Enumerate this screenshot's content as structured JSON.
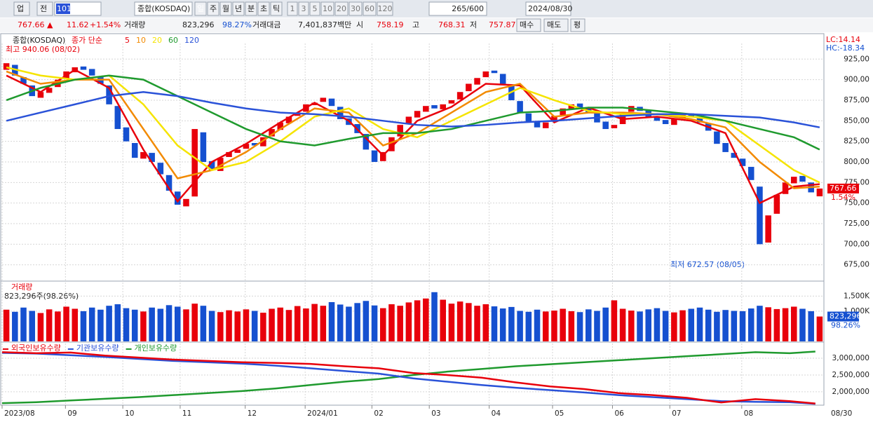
{
  "toolbar": {
    "market": "업",
    "mode": "전",
    "code": "101",
    "name": "종합(KOSDAQ)",
    "periods": [
      "일",
      "주",
      "월",
      "년",
      "분",
      "초",
      "틱"
    ],
    "minutes": [
      "1",
      "3",
      "5",
      "10",
      "20",
      "30",
      "60",
      "120"
    ],
    "count": "265/600",
    "date": "2024/08/30"
  },
  "info": {
    "price": "767.66 ▲",
    "change": "11.62",
    "change_pct": "+1.54%",
    "volume_label": "거래량",
    "volume": "823,296",
    "volume_pct": "98.27%",
    "amount_label": "거래대금",
    "amount": "7,401,837백만",
    "open_label": "시",
    "open": "758.19",
    "high_label": "고",
    "high": "768.31",
    "low_label": "저",
    "low": "757.87",
    "buy": "매수",
    "sell": "매도",
    "avg": "평",
    "x_end_label": "08/30"
  },
  "chart_data": [
    {
      "type": "candlestick",
      "title": "종합(KOSDAQ)",
      "ma_title": "종가 단순",
      "lc": "LC:14.14",
      "hc": "HC:-18.34",
      "max_note": "최고 940.06 (08/02)",
      "min_note": "최저 672.57 (08/05)",
      "last_label": "767.66",
      "last_pct": "1.54%",
      "up_color": "#e8000b",
      "down_color": "#1550d0",
      "xlim": [
        0,
        96
      ],
      "ylim": [
        656,
        944
      ],
      "yticks": [
        {
          "value": 675,
          "label": "675,00"
        },
        {
          "value": 700,
          "label": "700,00"
        },
        {
          "value": 725,
          "label": "725,00"
        },
        {
          "value": 750,
          "label": "750,00"
        },
        {
          "value": 775,
          "label": "775,00"
        },
        {
          "value": 800,
          "label": "800,00"
        },
        {
          "value": 825,
          "label": "825,00"
        },
        {
          "value": 850,
          "label": "850,00"
        },
        {
          "value": 875,
          "label": "875,00"
        },
        {
          "value": 900,
          "label": "900,00"
        },
        {
          "value": 925,
          "label": "925,00"
        }
      ],
      "open": [
        912,
        918,
        903,
        893,
        878,
        884,
        891,
        901,
        909,
        916,
        913,
        904,
        893,
        868,
        842,
        823,
        804,
        811,
        799,
        784,
        764,
        746,
        758,
        836,
        801,
        789,
        806,
        811,
        816,
        823,
        819,
        831,
        839,
        847,
        856,
        861,
        869,
        873,
        877,
        867,
        853,
        846,
        834,
        814,
        801,
        813,
        831,
        846,
        854,
        861,
        869,
        864,
        871,
        876,
        886,
        894,
        903,
        911,
        907,
        894,
        874,
        859,
        849,
        841,
        849,
        857,
        864,
        871,
        865,
        859,
        849,
        841,
        846,
        861,
        867,
        863,
        854,
        851,
        845,
        853,
        859,
        854,
        847,
        837,
        823,
        811,
        804,
        794,
        770,
        702,
        737,
        761,
        774,
        783,
        775,
        758.19
      ],
      "close": [
        920,
        905,
        895,
        880,
        885,
        890,
        900,
        910,
        915,
        912,
        905,
        895,
        870,
        840,
        825,
        805,
        812,
        800,
        785,
        765,
        748,
        755,
        840,
        800,
        790,
        805,
        812,
        815,
        822,
        820,
        830,
        840,
        848,
        855,
        860,
        870,
        872,
        878,
        868,
        852,
        845,
        835,
        815,
        800,
        812,
        830,
        845,
        855,
        862,
        868,
        865,
        870,
        875,
        885,
        895,
        902,
        910,
        908,
        895,
        875,
        860,
        848,
        842,
        848,
        856,
        865,
        870,
        866,
        860,
        848,
        840,
        845,
        860,
        868,
        862,
        855,
        850,
        846,
        852,
        858,
        855,
        848,
        838,
        822,
        812,
        805,
        795,
        778,
        700,
        735,
        760,
        775,
        782,
        776,
        763,
        767.66
      ],
      "ma_x": [
        0,
        4,
        8,
        12,
        16,
        20,
        24,
        28,
        32,
        36,
        40,
        44,
        48,
        52,
        56,
        60,
        64,
        68,
        72,
        76,
        80,
        84,
        88,
        92,
        95
      ],
      "series": [
        {
          "name": "5",
          "color": "#e8000b",
          "values": [
            905,
            885,
            912,
            890,
            815,
            752,
            800,
            822,
            848,
            872,
            850,
            808,
            850,
            867,
            895,
            893,
            848,
            866,
            852,
            855,
            850,
            835,
            750,
            770,
            773
          ]
        },
        {
          "name": "10",
          "color": "#f28a00",
          "values": [
            910,
            895,
            900,
            900,
            840,
            780,
            790,
            812,
            840,
            865,
            860,
            820,
            835,
            860,
            885,
            895,
            855,
            860,
            860,
            858,
            852,
            842,
            800,
            768,
            770
          ]
        },
        {
          "name": "20",
          "color": "#f5e400",
          "values": [
            915,
            905,
            900,
            905,
            870,
            820,
            790,
            800,
            825,
            855,
            865,
            840,
            830,
            850,
            870,
            890,
            875,
            862,
            858,
            858,
            855,
            850,
            820,
            790,
            775
          ]
        },
        {
          "name": "60",
          "color": "#1f9a2e",
          "values": [
            875,
            890,
            900,
            905,
            900,
            880,
            860,
            840,
            825,
            820,
            828,
            835,
            835,
            840,
            850,
            860,
            862,
            866,
            866,
            862,
            858,
            850,
            840,
            830,
            815
          ]
        },
        {
          "name": "120",
          "color": "#2a52d8",
          "values": [
            850,
            860,
            870,
            880,
            885,
            880,
            872,
            865,
            860,
            858,
            855,
            850,
            845,
            843,
            845,
            848,
            850,
            853,
            856,
            858,
            858,
            856,
            854,
            848,
            842
          ]
        }
      ]
    },
    {
      "type": "bar",
      "title": "거래량",
      "subtitle": "823,296주(98.26%)",
      "last_label": "823,296",
      "last_pct": "98.26%",
      "xlim": [
        0,
        96
      ],
      "ylim": [
        0,
        1950000
      ],
      "yticks": [
        {
          "value": 1000000,
          "label": "1,000K"
        },
        {
          "value": 1500000,
          "label": "1,500K"
        }
      ],
      "values": [
        1050000,
        980000,
        1120000,
        1010000,
        940000,
        1060000,
        990000,
        1150000,
        1080000,
        1000000,
        1120000,
        1050000,
        1180000,
        1230000,
        1100000,
        1050000,
        990000,
        1120000,
        1080000,
        1200000,
        1150000,
        1060000,
        1250000,
        1180000,
        1010000,
        970000,
        1030000,
        990000,
        1060000,
        1010000,
        950000,
        1080000,
        1120000,
        1040000,
        1170000,
        1090000,
        1240000,
        1180000,
        1300000,
        1220000,
        1150000,
        1270000,
        1340000,
        1190000,
        1100000,
        1230000,
        1180000,
        1290000,
        1360000,
        1420000,
        1630000,
        1380000,
        1250000,
        1320000,
        1270000,
        1180000,
        1230000,
        1160000,
        1090000,
        1140000,
        1010000,
        980000,
        1050000,
        990000,
        1020000,
        1080000,
        1000000,
        970000,
        1060000,
        1010000,
        1120000,
        1360000,
        1080000,
        1020000,
        990000,
        1060000,
        1100000,
        1010000,
        960000,
        1030000,
        1080000,
        1120000,
        1050000,
        980000,
        1040000,
        1010000,
        1000000,
        1090000,
        1180000,
        1130000,
        1070000,
        1100000,
        1150000,
        1080000,
        1000000,
        823296
      ],
      "colors": {
        "up": "#e8000b",
        "down": "#1550d0"
      }
    },
    {
      "type": "line",
      "xlim": [
        0,
        96
      ],
      "ylim": [
        1600000,
        3440000
      ],
      "yticks": [
        {
          "value": 2000000,
          "label": "2,000,000"
        },
        {
          "value": 2500000,
          "label": "2,500,000"
        },
        {
          "value": 3000000,
          "label": "3,000,000"
        }
      ],
      "x": [
        0,
        4,
        8,
        12,
        16,
        20,
        24,
        28,
        32,
        36,
        40,
        44,
        48,
        52,
        56,
        60,
        64,
        68,
        72,
        76,
        80,
        84,
        88,
        92,
        95
      ],
      "xticks": [
        {
          "value": 0,
          "label": "2023/08"
        },
        {
          "value": 7.4,
          "label": "09"
        },
        {
          "value": 14.1,
          "label": "10"
        },
        {
          "value": 20.8,
          "label": "11"
        },
        {
          "value": 28.4,
          "label": "12"
        },
        {
          "value": 35.4,
          "label": "2024/01"
        },
        {
          "value": 43.2,
          "label": "02"
        },
        {
          "value": 49.9,
          "label": "03"
        },
        {
          "value": 56.9,
          "label": "04"
        },
        {
          "value": 64.3,
          "label": "05"
        },
        {
          "value": 71.3,
          "label": "06"
        },
        {
          "value": 78,
          "label": "07"
        },
        {
          "value": 86.4,
          "label": "08"
        }
      ],
      "series": [
        {
          "name": "외국인보유수량",
          "color": "#e8000b",
          "values": [
            3180000,
            3150000,
            3170000,
            3080000,
            3020000,
            2960000,
            2920000,
            2880000,
            2860000,
            2830000,
            2760000,
            2700000,
            2560000,
            2500000,
            2420000,
            2280000,
            2160000,
            2080000,
            1960000,
            1900000,
            1820000,
            1680000,
            1780000,
            1720000,
            1650000
          ]
        },
        {
          "name": "기관보유수량",
          "color": "#2a52d8",
          "values": [
            3160000,
            3140000,
            3090000,
            3040000,
            2980000,
            2920000,
            2880000,
            2840000,
            2780000,
            2700000,
            2620000,
            2540000,
            2400000,
            2300000,
            2200000,
            2120000,
            2050000,
            1980000,
            1900000,
            1840000,
            1780000,
            1720000,
            1700000,
            1690000,
            1640000
          ]
        },
        {
          "name": "개인보유수량",
          "color": "#1f9a2e",
          "values": [
            1660000,
            1690000,
            1740000,
            1790000,
            1840000,
            1900000,
            1960000,
            2020000,
            2100000,
            2200000,
            2300000,
            2380000,
            2500000,
            2600000,
            2680000,
            2760000,
            2820000,
            2880000,
            2940000,
            3000000,
            3060000,
            3120000,
            3180000,
            3150000,
            3200000
          ]
        }
      ]
    }
  ]
}
